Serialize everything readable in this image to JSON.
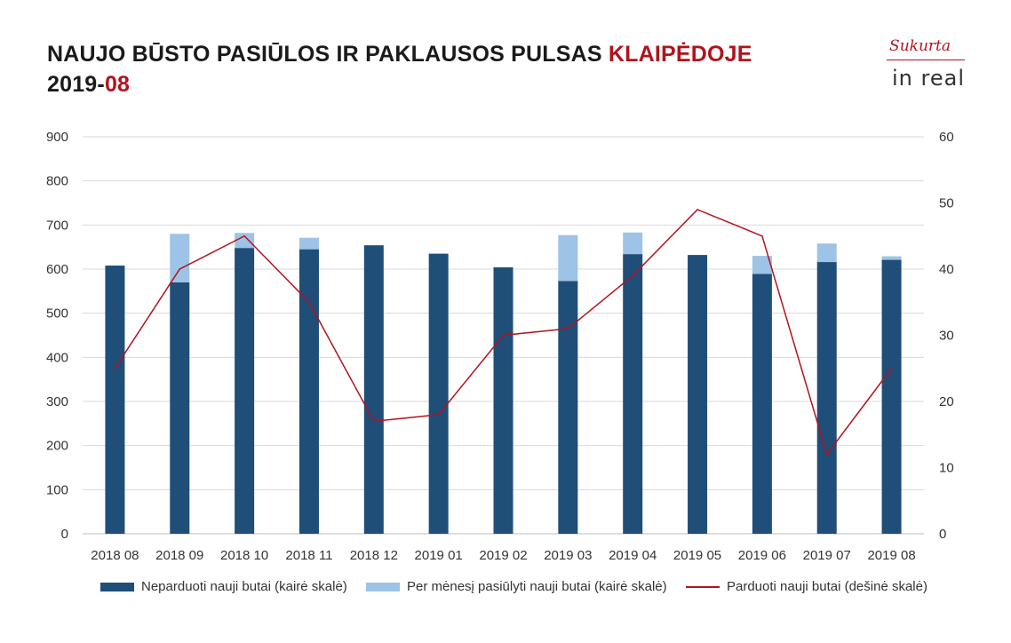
{
  "header": {
    "title_main": "NAUJO BŪSTO PASIŪLOS IR PAKLAUSOS PULSAS ",
    "title_city": "KLAIPĖDOJE",
    "period_year": "2019-",
    "period_month": "08"
  },
  "logo": {
    "tagline": "Sukurta",
    "brand": "in real"
  },
  "colors": {
    "accent": "#b3121c",
    "unsold": "#1f4e79",
    "offered": "#9dc3e6",
    "sold_line": "#b3121c",
    "grid": "#d9d9d9"
  },
  "chart_data": {
    "type": "bar",
    "categories": [
      "2018 08",
      "2018 09",
      "2018 10",
      "2018 11",
      "2018 12",
      "2019 01",
      "2019 02",
      "2019 03",
      "2019 04",
      "2019 05",
      "2019 06",
      "2019 07",
      "2019 08"
    ],
    "series": [
      {
        "name": "Neparduoti nauji butai (kairė skalė)",
        "kind": "bar",
        "axis": "left",
        "values": [
          608,
          570,
          648,
          645,
          654,
          635,
          604,
          573,
          634,
          632,
          589,
          616,
          621
        ]
      },
      {
        "name": "Per mėnesį pasiūlyti nauji butai (kairė skalė)",
        "kind": "bar-stacked",
        "axis": "left",
        "values": [
          0,
          110,
          34,
          26,
          0,
          0,
          0,
          104,
          49,
          0,
          41,
          42,
          8
        ]
      },
      {
        "name": "Parduoti nauji butai (dešinė skalė)",
        "kind": "line",
        "axis": "right",
        "values": [
          25,
          40,
          45,
          35,
          17,
          18,
          30,
          31,
          39,
          49,
          45,
          12,
          25
        ]
      }
    ],
    "y_left": {
      "min": 0,
      "max": 900,
      "ticks": [
        "0",
        "100",
        "200",
        "300",
        "400",
        "500",
        "600",
        "700",
        "800",
        "900"
      ]
    },
    "y_right": {
      "min": 0,
      "max": 60,
      "ticks": [
        "0",
        "10",
        "20",
        "30",
        "40",
        "50",
        "60"
      ]
    },
    "grid": true,
    "legend_position": "bottom"
  }
}
